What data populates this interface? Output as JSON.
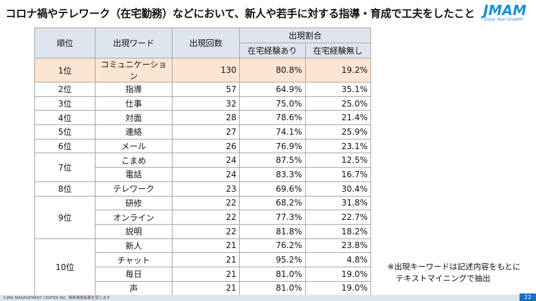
{
  "header": {
    "title": "コロナ禍やテレワーク（在宅勤務）などにおいて、新人や若手に対する指導・育成で工夫をしたこと",
    "logo": "JMAM",
    "tagline": "Enjoy Your Growth!"
  },
  "table": {
    "headers": {
      "rank": "順位",
      "word": "出現ワード",
      "count": "出現回数",
      "ratio": "出現割合",
      "with": "在宅経験あり",
      "without": "在宅経験無し"
    },
    "groups": [
      {
        "rank": "1位",
        "rows": [
          [
            "コミュニケーション",
            "130",
            "80.8%",
            "19.2%"
          ]
        ]
      },
      {
        "rank": "2位",
        "rows": [
          [
            "指導",
            "57",
            "64.9%",
            "35.1%"
          ]
        ]
      },
      {
        "rank": "3位",
        "rows": [
          [
            "仕事",
            "32",
            "75.0%",
            "25.0%"
          ]
        ]
      },
      {
        "rank": "4位",
        "rows": [
          [
            "対面",
            "28",
            "78.6%",
            "21.4%"
          ]
        ]
      },
      {
        "rank": "5位",
        "rows": [
          [
            "連絡",
            "27",
            "74.1%",
            "25.9%"
          ]
        ]
      },
      {
        "rank": "6位",
        "rows": [
          [
            "メール",
            "26",
            "76.9%",
            "23.1%"
          ]
        ]
      },
      {
        "rank": "7位",
        "rows": [
          [
            "こまめ",
            "24",
            "87.5%",
            "12.5%"
          ],
          [
            "電話",
            "24",
            "83.3%",
            "16.7%"
          ]
        ]
      },
      {
        "rank": "8位",
        "rows": [
          [
            "テレワーク",
            "23",
            "69.6%",
            "30.4%"
          ]
        ]
      },
      {
        "rank": "9位",
        "rows": [
          [
            "研修",
            "22",
            "68.2%",
            "31.8%"
          ],
          [
            "オンライン",
            "22",
            "77.3%",
            "22.7%"
          ],
          [
            "説明",
            "22",
            "81.8%",
            "18.2%"
          ]
        ]
      },
      {
        "rank": "10位",
        "rows": [
          [
            "新人",
            "21",
            "76.2%",
            "23.8%"
          ],
          [
            "チャット",
            "21",
            "95.2%",
            "4.8%"
          ],
          [
            "毎日",
            "21",
            "81.0%",
            "19.0%"
          ],
          [
            "声",
            "21",
            "81.0%",
            "19.0%"
          ]
        ]
      }
    ]
  },
  "note": [
    "※出現キーワードは記述内容をもとに",
    "テキストマイニングで抽出"
  ],
  "footer": {
    "copyright": "©JMA MANAGEMENT CENTER INC.  無断複製転載を禁じます",
    "page": "22"
  }
}
